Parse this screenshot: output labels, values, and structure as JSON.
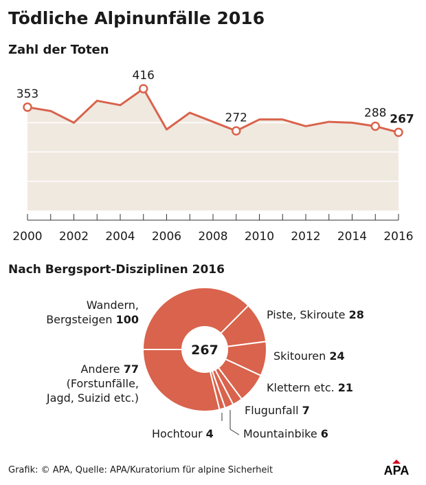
{
  "title": "Tödliche Alpinunfälle 2016",
  "footer": "Grafik: © APA, Quelle: APA/Kuratorium für alpine Sicherheit",
  "logo_text": "APA",
  "colors": {
    "accent": "#d9634c",
    "fill": "#efe9e0",
    "grid": "#ffffff"
  },
  "chart_data": [
    {
      "type": "line",
      "title": "Zahl der Toten",
      "x": [
        2000,
        2001,
        2002,
        2003,
        2004,
        2005,
        2006,
        2007,
        2008,
        2009,
        2010,
        2011,
        2012,
        2013,
        2014,
        2015,
        2016
      ],
      "values": [
        353,
        340,
        300,
        375,
        360,
        416,
        277,
        334,
        303,
        272,
        311,
        311,
        288,
        303,
        300,
        288,
        267
      ],
      "labeled_points": [
        {
          "x": 2000,
          "label": "353"
        },
        {
          "x": 2005,
          "label": "416"
        },
        {
          "x": 2009,
          "label": "272"
        },
        {
          "x": 2015,
          "label": "288"
        },
        {
          "x": 2016,
          "label": "267",
          "bold": true
        }
      ],
      "tick_labels": [
        "2000",
        "2002",
        "2004",
        "2006",
        "2008",
        "2010",
        "2012",
        "2014",
        "2016"
      ],
      "ylim": [
        0,
        420
      ],
      "grid": true
    },
    {
      "type": "pie",
      "title": "Nach Bergsport-Disziplinen 2016",
      "center_label": "267",
      "slices": [
        {
          "name": "Wandern, Bergsteigen",
          "value": 100,
          "line1": "Wandern,",
          "line2": "Bergsteigen"
        },
        {
          "name": "Piste, Skiroute",
          "value": 28
        },
        {
          "name": "Skitouren",
          "value": 24
        },
        {
          "name": "Klettern etc.",
          "value": 21
        },
        {
          "name": "Flugunfall",
          "value": 7
        },
        {
          "name": "Mountainbike",
          "value": 6
        },
        {
          "name": "Hochtour",
          "value": 4
        },
        {
          "name": "Andere",
          "value": 77,
          "note1": "(Forstunfälle,",
          "note2": "Jagd, Suizid etc.)"
        }
      ]
    }
  ]
}
